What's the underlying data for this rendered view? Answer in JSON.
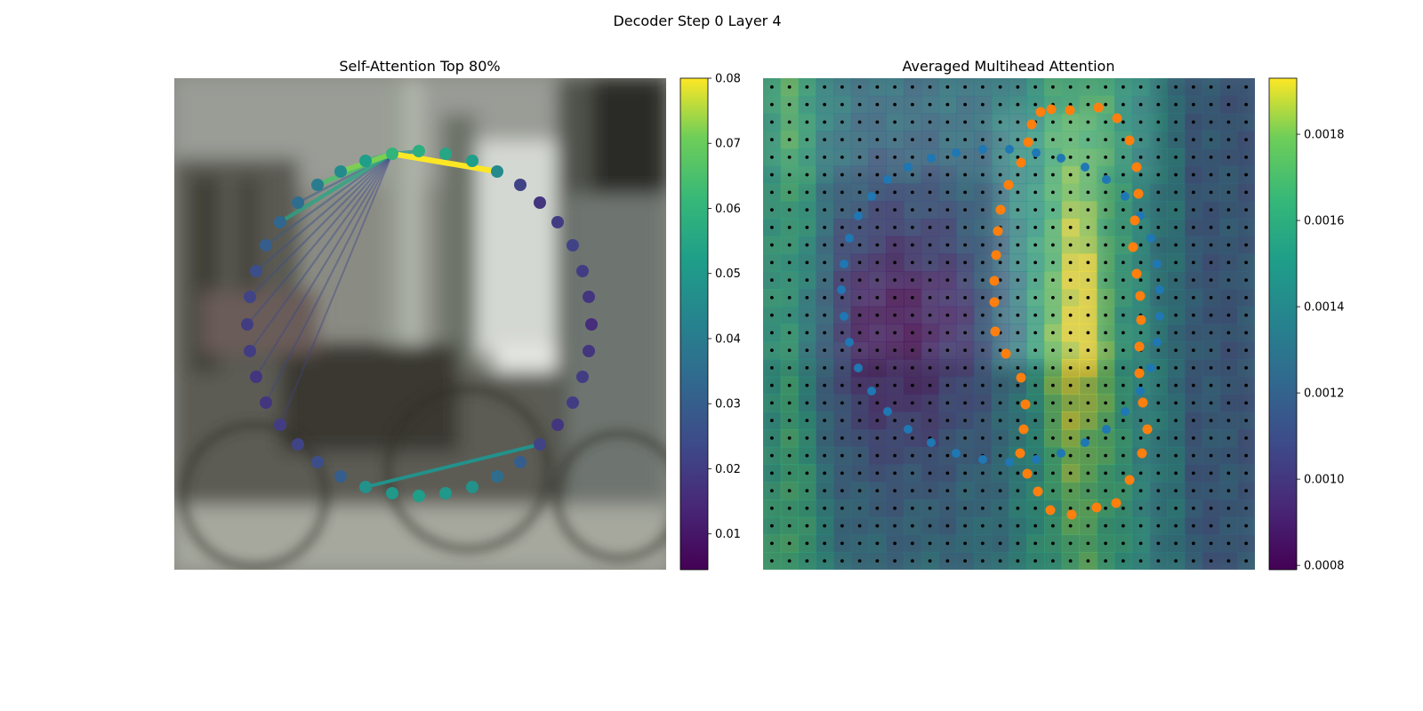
{
  "figure": {
    "title": "Decoder Step 0 Layer 4"
  },
  "chart_data": [
    {
      "type": "scatter",
      "panel": "self-attention",
      "title": "Self-Attention Top 80%",
      "colormap": "viridis",
      "colorbar": {
        "range": [
          0.0045,
          0.08
        ],
        "ticks": [
          0.01,
          0.02,
          0.03,
          0.04,
          0.05,
          0.06,
          0.07,
          0.08
        ],
        "tick_labels": [
          "0.01",
          "0.02",
          "0.03",
          "0.04",
          "0.05",
          "0.06",
          "0.07",
          "0.08"
        ]
      },
      "query_point_index": 0,
      "points": [
        {
          "x": 245,
          "y": 85,
          "v": 0.06
        },
        {
          "x": 275,
          "y": 82,
          "v": 0.058
        },
        {
          "x": 305,
          "y": 85,
          "v": 0.055
        },
        {
          "x": 335,
          "y": 93,
          "v": 0.052
        },
        {
          "x": 363,
          "y": 105,
          "v": 0.045
        },
        {
          "x": 389,
          "y": 120,
          "v": 0.022
        },
        {
          "x": 411,
          "y": 140,
          "v": 0.018
        },
        {
          "x": 431,
          "y": 162,
          "v": 0.02
        },
        {
          "x": 448,
          "y": 188,
          "v": 0.022
        },
        {
          "x": 459,
          "y": 217,
          "v": 0.02
        },
        {
          "x": 466,
          "y": 246,
          "v": 0.018
        },
        {
          "x": 469,
          "y": 277,
          "v": 0.016
        },
        {
          "x": 466,
          "y": 307,
          "v": 0.018
        },
        {
          "x": 459,
          "y": 336,
          "v": 0.02
        },
        {
          "x": 448,
          "y": 365,
          "v": 0.02
        },
        {
          "x": 431,
          "y": 390,
          "v": 0.018
        },
        {
          "x": 411,
          "y": 412,
          "v": 0.022
        },
        {
          "x": 389,
          "y": 432,
          "v": 0.03
        },
        {
          "x": 363,
          "y": 448,
          "v": 0.035
        },
        {
          "x": 335,
          "y": 460,
          "v": 0.048
        },
        {
          "x": 305,
          "y": 467,
          "v": 0.05
        },
        {
          "x": 275,
          "y": 470,
          "v": 0.052
        },
        {
          "x": 245,
          "y": 467,
          "v": 0.05
        },
        {
          "x": 215,
          "y": 460,
          "v": 0.048
        },
        {
          "x": 187,
          "y": 448,
          "v": 0.03
        },
        {
          "x": 161,
          "y": 432,
          "v": 0.025
        },
        {
          "x": 139,
          "y": 412,
          "v": 0.022
        },
        {
          "x": 119,
          "y": 390,
          "v": 0.02
        },
        {
          "x": 103,
          "y": 365,
          "v": 0.018
        },
        {
          "x": 92,
          "y": 336,
          "v": 0.018
        },
        {
          "x": 85,
          "y": 307,
          "v": 0.02
        },
        {
          "x": 82,
          "y": 277,
          "v": 0.02
        },
        {
          "x": 85,
          "y": 246,
          "v": 0.022
        },
        {
          "x": 92,
          "y": 217,
          "v": 0.025
        },
        {
          "x": 103,
          "y": 188,
          "v": 0.03
        },
        {
          "x": 119,
          "y": 162,
          "v": 0.033
        },
        {
          "x": 139,
          "y": 140,
          "v": 0.035
        },
        {
          "x": 161,
          "y": 120,
          "v": 0.04
        },
        {
          "x": 187,
          "y": 105,
          "v": 0.045
        },
        {
          "x": 215,
          "y": 93,
          "v": 0.052
        }
      ],
      "edges": [
        {
          "to": 4,
          "v": 0.08
        },
        {
          "to": 38,
          "v": 0.072
        },
        {
          "to": 37,
          "v": 0.065
        },
        {
          "to": 35,
          "v": 0.055
        },
        {
          "to": 1,
          "v": 0.05
        },
        {
          "to": 39,
          "v": 0.06
        },
        {
          "to": 36,
          "v": 0.03
        },
        {
          "to": 34,
          "v": 0.028
        },
        {
          "to": 33,
          "v": 0.026
        },
        {
          "to": 32,
          "v": 0.025
        },
        {
          "to": 31,
          "v": 0.024
        },
        {
          "to": 30,
          "v": 0.024
        },
        {
          "to": 29,
          "v": 0.023
        },
        {
          "to": 28,
          "v": 0.023
        },
        {
          "to": 27,
          "v": 0.022
        }
      ],
      "extra_edges": [
        {
          "from": 23,
          "to": 16,
          "v": 0.048
        }
      ]
    },
    {
      "type": "heatmap",
      "panel": "averaged-multihead",
      "title": "Averaged Multihead Attention",
      "colormap": "viridis",
      "colorbar": {
        "range": [
          0.00079,
          0.00193
        ],
        "ticks": [
          0.0008,
          0.001,
          0.0012,
          0.0014,
          0.0016,
          0.0018
        ],
        "tick_labels": [
          "0.0008",
          "0.0010",
          "0.0012",
          "0.0014",
          "0.0016",
          "0.0018"
        ]
      },
      "grid": {
        "rows": 28,
        "cols": 28
      },
      "blue_contour": [
        [
          277,
          80
        ],
        [
          307,
          84
        ],
        [
          335,
          90
        ],
        [
          362,
          100
        ],
        [
          386,
          114
        ],
        [
          407,
          133
        ],
        [
          424,
          155
        ],
        [
          436,
          180
        ],
        [
          443,
          209
        ],
        [
          446,
          238
        ],
        [
          446,
          268
        ],
        [
          443,
          297
        ],
        [
          436,
          326
        ],
        [
          424,
          352
        ],
        [
          407,
          375
        ],
        [
          386,
          395
        ],
        [
          362,
          410
        ],
        [
          335,
          422
        ],
        [
          307,
          429
        ],
        [
          277,
          432
        ],
        [
          247,
          429
        ],
        [
          217,
          422
        ],
        [
          189,
          410
        ],
        [
          163,
          395
        ],
        [
          140,
          375
        ],
        [
          122,
          352
        ],
        [
          107,
          326
        ],
        [
          97,
          297
        ],
        [
          91,
          268
        ],
        [
          88,
          238
        ],
        [
          91,
          209
        ],
        [
          97,
          180
        ],
        [
          107,
          155
        ],
        [
          122,
          133
        ],
        [
          140,
          114
        ],
        [
          163,
          100
        ],
        [
          189,
          90
        ],
        [
          217,
          84
        ],
        [
          247,
          80
        ]
      ],
      "orange_contour": [
        [
          302,
          52
        ],
        [
          312,
          38
        ],
        [
          324,
          35
        ],
        [
          345,
          36
        ],
        [
          377,
          33
        ],
        [
          398,
          45
        ],
        [
          412,
          70
        ],
        [
          420,
          100
        ],
        [
          422,
          130
        ],
        [
          418,
          160
        ],
        [
          416,
          190
        ],
        [
          420,
          220
        ],
        [
          424,
          245
        ],
        [
          425,
          272
        ],
        [
          423,
          302
        ],
        [
          423,
          332
        ],
        [
          427,
          365
        ],
        [
          432,
          395
        ],
        [
          426,
          422
        ],
        [
          412,
          452
        ],
        [
          397,
          478
        ],
        [
          375,
          483
        ],
        [
          347,
          491
        ],
        [
          323,
          486
        ],
        [
          309,
          465
        ],
        [
          297,
          445
        ],
        [
          289,
          422
        ],
        [
          293,
          395
        ],
        [
          295,
          367
        ],
        [
          290,
          337
        ],
        [
          273,
          310
        ],
        [
          261,
          285
        ],
        [
          260,
          252
        ],
        [
          260,
          228
        ],
        [
          262,
          199
        ],
        [
          264,
          172
        ],
        [
          267,
          148
        ],
        [
          276,
          120
        ],
        [
          290,
          95
        ],
        [
          298,
          72
        ]
      ]
    }
  ]
}
